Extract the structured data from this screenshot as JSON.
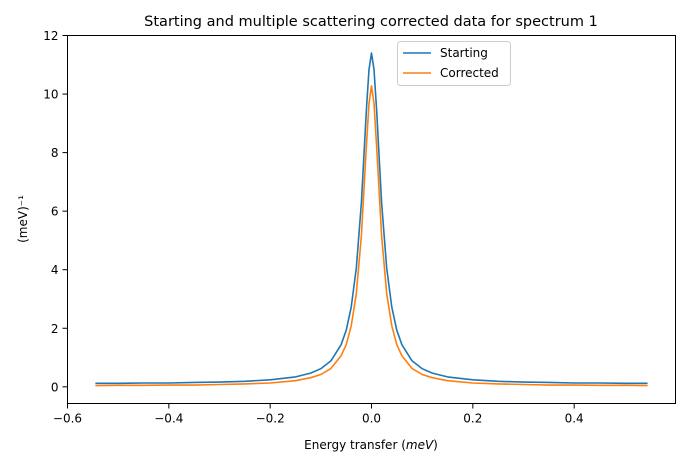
{
  "chart_data": {
    "type": "line",
    "title": "Starting and  multiple scattering corrected data for spectrum 1",
    "xlabel": "Energy transfer (meV)",
    "xlabel_plain": "Energy transfer (",
    "xlabel_italic": "meV",
    "xlabel_close": ")",
    "ylabel": "(meV)⁻¹",
    "xlim": [
      -0.6,
      0.6
    ],
    "ylim": [
      -0.57,
      12.0
    ],
    "xticks": [
      -0.6,
      -0.4,
      -0.2,
      0.0,
      0.2,
      0.4
    ],
    "xtick_labels": [
      "−0.6",
      "−0.4",
      "−0.2",
      "0.0",
      "0.2",
      "0.4"
    ],
    "yticks": [
      0,
      2,
      4,
      6,
      8,
      10,
      12
    ],
    "ytick_labels": [
      "0",
      "2",
      "4",
      "6",
      "8",
      "10",
      "12"
    ],
    "grid": false,
    "legend_position": "upper-center-right",
    "x": [
      -0.545,
      -0.5,
      -0.45,
      -0.4,
      -0.35,
      -0.3,
      -0.25,
      -0.2,
      -0.15,
      -0.12,
      -0.1,
      -0.08,
      -0.06,
      -0.05,
      -0.04,
      -0.03,
      -0.02,
      -0.01,
      -0.005,
      0,
      0.005,
      0.01,
      0.02,
      0.03,
      0.04,
      0.05,
      0.06,
      0.08,
      0.1,
      0.12,
      0.15,
      0.2,
      0.25,
      0.3,
      0.35,
      0.4,
      0.45,
      0.5,
      0.545
    ],
    "series": [
      {
        "name": "Starting",
        "color": "#1f77b4",
        "values": [
          0.12,
          0.12,
          0.13,
          0.13,
          0.15,
          0.16,
          0.19,
          0.24,
          0.34,
          0.47,
          0.62,
          0.89,
          1.44,
          1.93,
          2.72,
          4.05,
          6.29,
          9.47,
          10.84,
          11.4,
          10.84,
          9.47,
          6.29,
          4.05,
          2.72,
          1.93,
          1.44,
          0.89,
          0.62,
          0.47,
          0.34,
          0.24,
          0.19,
          0.16,
          0.15,
          0.13,
          0.13,
          0.12,
          0.12
        ]
      },
      {
        "name": "Corrected",
        "color": "#ff7f0e",
        "values": [
          0.04,
          0.05,
          0.05,
          0.06,
          0.06,
          0.08,
          0.1,
          0.13,
          0.21,
          0.31,
          0.42,
          0.63,
          1.06,
          1.44,
          2.08,
          3.18,
          5.16,
          8.23,
          9.68,
          10.28,
          9.68,
          8.23,
          5.16,
          3.18,
          2.08,
          1.44,
          1.06,
          0.63,
          0.42,
          0.31,
          0.21,
          0.13,
          0.1,
          0.08,
          0.06,
          0.06,
          0.05,
          0.05,
          0.04
        ]
      }
    ]
  }
}
